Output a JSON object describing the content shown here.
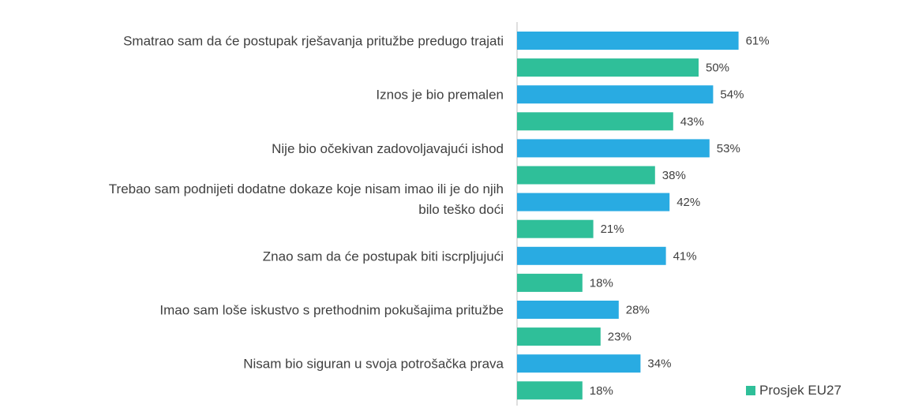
{
  "chart_data": {
    "type": "bar",
    "orientation": "horizontal",
    "categories": [
      "Smatrao sam da će postupak rješavanja pritužbe predugo trajati",
      "Iznos je bio premalen",
      "Nije bio očekivan zadovoljavajući ishod",
      "Trebao sam podnijeti dodatne dokaze koje nisam imao ili je do njih bilo teško doći",
      "Znao sam da će postupak biti iscrpljujući",
      "Imao sam loše iskustvo s prethodnim pokušajima pritužbe",
      "Nisam bio siguran u svoja potrošačka prava"
    ],
    "category_lines": [
      [
        "Smatrao sam da će postupak rješavanja pritužbe predugo trajati"
      ],
      [
        "Iznos je bio premalen"
      ],
      [
        "Nije bio očekivan zadovoljavajući ishod"
      ],
      [
        "Trebao sam podnijeti dodatne dokaze koje nisam imao ili je do njih",
        "bilo teško doći"
      ],
      [
        "Znao sam da će postupak biti iscrpljujući"
      ],
      [
        "Imao sam loše iskustvo s prethodnim pokušajima pritužbe"
      ],
      [
        "Nisam bio siguran u svoja potrošačka prava"
      ]
    ],
    "series": [
      {
        "name": "",
        "color": "#29abe2",
        "values": [
          61,
          54,
          53,
          42,
          41,
          28,
          34
        ]
      },
      {
        "name": "Prosjek EU27",
        "color": "#2fbf99",
        "values": [
          50,
          43,
          38,
          21,
          18,
          23,
          18
        ]
      }
    ],
    "value_suffix": "%",
    "xlim": [
      0,
      100
    ],
    "grid": false,
    "legend": {
      "position": "bottom-right",
      "entries": [
        "Prosjek EU27"
      ]
    }
  }
}
